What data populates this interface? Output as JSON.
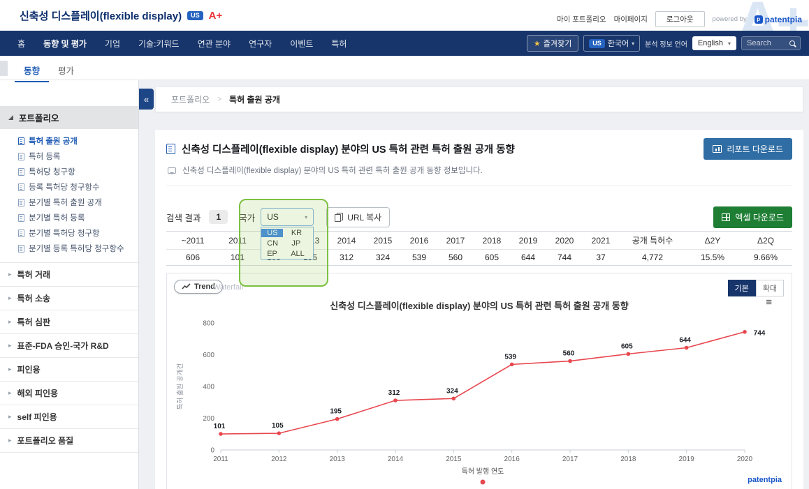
{
  "icons": {
    "hamburger": "≡",
    "collapse": "«",
    "star": "★",
    "chevron_down": "▾",
    "arrow_right": "▸"
  },
  "header": {
    "title": "신축성 디스플레이(flexible display)",
    "country_badge": "US",
    "grade": "A+",
    "watermark": "A+",
    "my_portfolio": "마이 포트폴리오",
    "my_page": "마이페이지",
    "logout": "로그아웃",
    "powered_by": "powered by",
    "brand": "patentpia",
    "brand_initial": "p"
  },
  "nav": {
    "items": [
      {
        "label": "홈"
      },
      {
        "label": "동향 및 평가"
      },
      {
        "label": "기업"
      },
      {
        "label": "기술:키워드"
      },
      {
        "label": "연관 분야"
      },
      {
        "label": "연구자"
      },
      {
        "label": "이벤트"
      },
      {
        "label": "특허"
      }
    ],
    "favorites": "즐겨찾기",
    "site_lang_badge": "US",
    "site_lang": "한국어",
    "analysis_lang_label": "분석 정보 언어",
    "analysis_lang": "English",
    "search_placeholder": "Search"
  },
  "subtabs": {
    "trend": "동향",
    "evaluation": "평가"
  },
  "sidebar": {
    "section_title": "포트폴리오",
    "items": [
      "특허 출원 공개",
      "특허 등록",
      "특허당 청구항",
      "등록 특허당 청구항수",
      "분기별 특허 출원 공개",
      "분기별 특허 등록",
      "분기별 특허당 청구항",
      "분기별 등록 특허당 청구항수"
    ],
    "sections": [
      "특허 거래",
      "특허 소송",
      "특허 심판",
      "표준-FDA 승인-국가 R&D",
      "피인용",
      "해외 피인용",
      "self 피인용",
      "포트폴리오 품질"
    ]
  },
  "breadcrumb": {
    "parent": "포트폴리오",
    "separator": ">",
    "current": "특허 출원 공개"
  },
  "main": {
    "title": "신축성 디스플레이(flexible display) 분야의 US 특허 관련 특허 출원 공개 동향",
    "subtitle": "신축성 디스플레이(flexible display) 분야의 US 특허 관련 특허 출원 공개 동향 정보입니다.",
    "report_button": "리포트 다운로드",
    "excel_button": "엑셀 다운로드",
    "search_result_label": "검색 결과",
    "search_result_count": "1",
    "country_label": "국가",
    "country_selected": "US",
    "country_options": [
      "US",
      "KR",
      "CN",
      "JP",
      "EP",
      "ALL"
    ],
    "url_copy_button": "URL 복사"
  },
  "table": {
    "columns": [
      "~2011",
      "2011",
      "2012",
      "2013",
      "2014",
      "2015",
      "2016",
      "2017",
      "2018",
      "2019",
      "2020",
      "2021",
      "공개 특허수",
      "Δ2Y",
      "Δ2Q"
    ],
    "values": [
      "606",
      "101",
      "105",
      "195",
      "312",
      "324",
      "539",
      "560",
      "605",
      "644",
      "744",
      "37",
      "4,772",
      "15.5%",
      "9.66%"
    ]
  },
  "chart": {
    "trend_button": "Trend",
    "waterfall_label": "Waterfall",
    "basic_button": "기본",
    "zoom_button": "확대",
    "brand": "patentpia"
  },
  "chart_data": {
    "type": "line",
    "title": "신축성 디스플레이(flexible display) 분야의 US 특허 관련 특허 출원 공개 동향",
    "x": [
      "2011",
      "2012",
      "2013",
      "2014",
      "2015",
      "2016",
      "2017",
      "2018",
      "2019",
      "2020"
    ],
    "series": [
      {
        "name": "특허 출원 공개",
        "values": [
          101,
          105,
          195,
          312,
          324,
          539,
          560,
          605,
          644,
          744
        ]
      }
    ],
    "xlabel": "특허 발행 연도",
    "ylabel": "특허 출원 공개건",
    "ylim": [
      0,
      800
    ],
    "yticks": [
      0,
      200,
      400,
      600,
      800
    ],
    "line_color": "#e8484f",
    "grid": false,
    "legend_position": "bottom"
  }
}
